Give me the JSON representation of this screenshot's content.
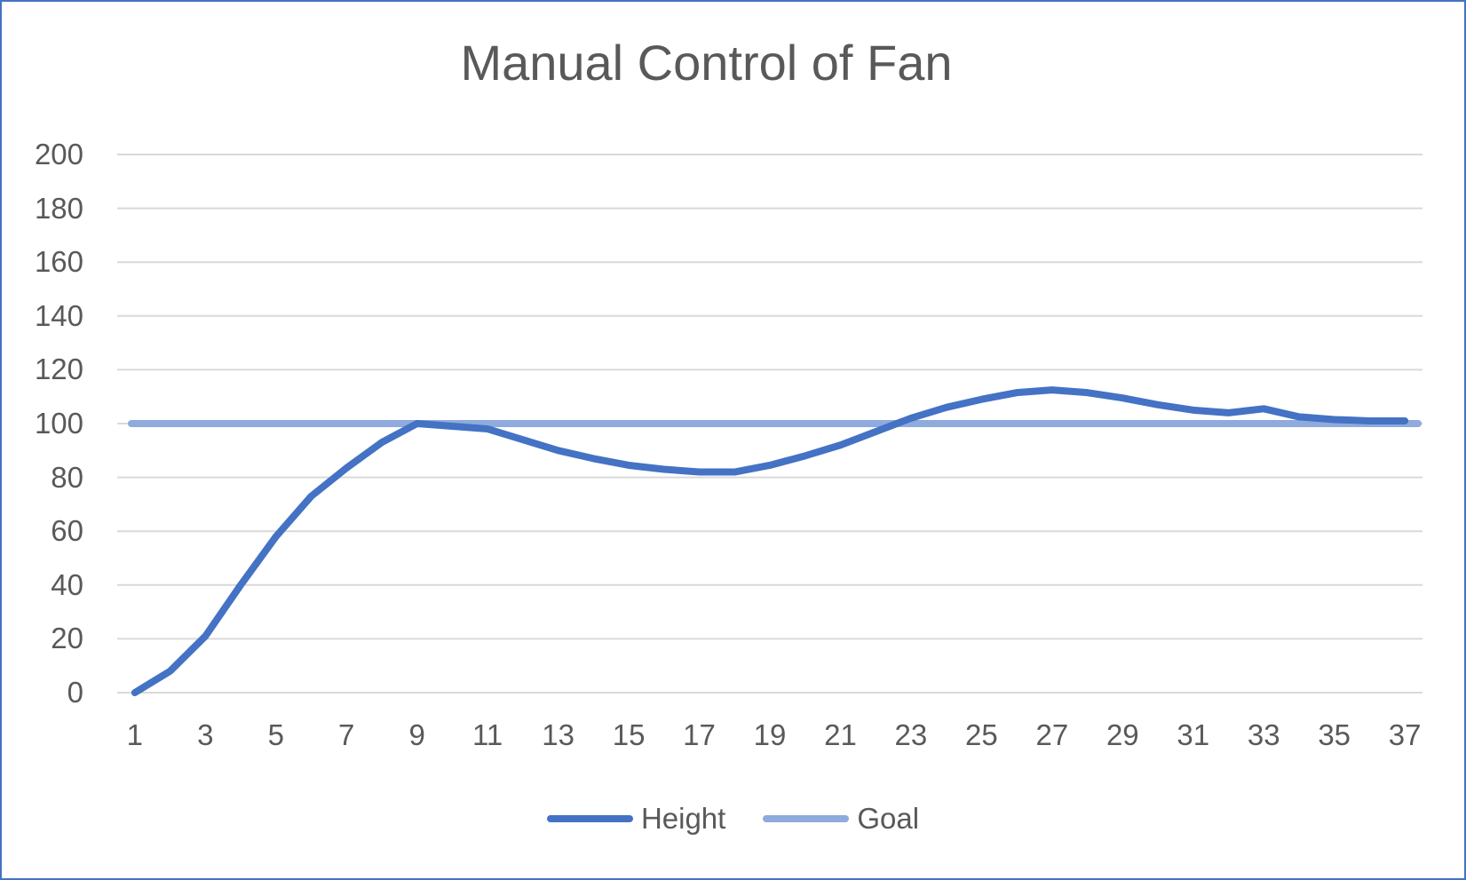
{
  "window": {
    "background_color": "#FFFFFF",
    "border_color": "#4472C4"
  },
  "chart_data": {
    "type": "line",
    "title": "Manual Control of Fan",
    "title_color": "#595959",
    "text_color": "#595959",
    "gridline_color": "#D9D9D9",
    "grid": "horizontal",
    "legend_position": "bottom",
    "xlabel": "",
    "ylabel": "",
    "ylim": [
      0,
      200
    ],
    "y_ticks": [
      0,
      20,
      40,
      60,
      80,
      100,
      120,
      140,
      160,
      180,
      200
    ],
    "x_tick_labels": [
      "1",
      "3",
      "5",
      "7",
      "9",
      "11",
      "13",
      "15",
      "17",
      "19",
      "21",
      "23",
      "25",
      "27",
      "29",
      "31",
      "33",
      "35",
      "37"
    ],
    "x": [
      1,
      2,
      3,
      4,
      5,
      6,
      7,
      8,
      9,
      10,
      11,
      12,
      13,
      14,
      15,
      16,
      17,
      18,
      19,
      20,
      21,
      22,
      23,
      24,
      25,
      26,
      27,
      28,
      29,
      30,
      31,
      32,
      33,
      34,
      35,
      36,
      37
    ],
    "series": [
      {
        "name": "Height",
        "color": "#4472C4",
        "stroke_width": 8,
        "full_width": false,
        "values": [
          0,
          8,
          21,
          40,
          58,
          73,
          83.5,
          93,
          100,
          99,
          98,
          94,
          90,
          87,
          84.5,
          83,
          82,
          82,
          84.5,
          88,
          92,
          97,
          102,
          106,
          109,
          111.5,
          112.5,
          111.5,
          109.5,
          107,
          105,
          104,
          105.5,
          102.5,
          101.5,
          101,
          101
        ]
      },
      {
        "name": "Goal",
        "color": "#8FAADC",
        "stroke_width": 8,
        "full_width": true,
        "values": [
          100,
          100,
          100,
          100,
          100,
          100,
          100,
          100,
          100,
          100,
          100,
          100,
          100,
          100,
          100,
          100,
          100,
          100,
          100,
          100,
          100,
          100,
          100,
          100,
          100,
          100,
          100,
          100,
          100,
          100,
          100,
          100,
          100,
          100,
          100,
          100,
          100
        ]
      }
    ]
  },
  "legend": {
    "items": [
      {
        "label": "Height",
        "color": "#4472C4"
      },
      {
        "label": "Goal",
        "color": "#8FAADC"
      }
    ]
  }
}
